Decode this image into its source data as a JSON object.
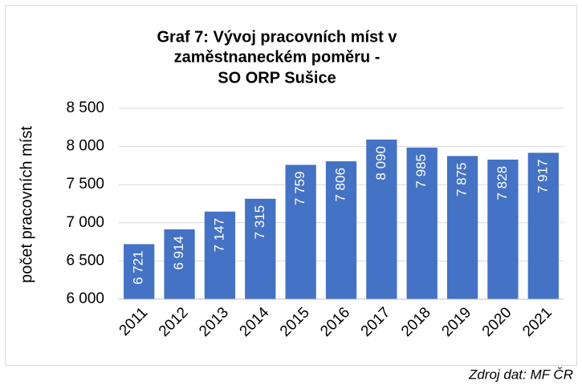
{
  "chart_data": {
    "type": "bar",
    "title": [
      "Graf 7: Vývoj pracovních míst v",
      "zaměstnaneckém poměru -",
      "SO ORP Sušice"
    ],
    "y_label": "počet pracovních míst",
    "source": "Zdroj dat: MF ČR",
    "categories": [
      "2011",
      "2012",
      "2013",
      "2014",
      "2015",
      "2016",
      "2017",
      "2018",
      "2019",
      "2020",
      "2021"
    ],
    "values": [
      6721,
      6914,
      7147,
      7315,
      7759,
      7806,
      8090,
      7985,
      7875,
      7828,
      7917
    ],
    "value_labels": [
      "6 721",
      "6 914",
      "7 147",
      "7 315",
      "7 759",
      "7 806",
      "8 090",
      "7 985",
      "7 875",
      "7 828",
      "7 917"
    ],
    "color": "#4472c4",
    "ylim": [
      6000,
      8500
    ],
    "yticks": [
      {
        "value": 6000,
        "label": "6 000"
      },
      {
        "value": 6500,
        "label": "6 500"
      },
      {
        "value": 7000,
        "label": "7 000"
      },
      {
        "value": 7500,
        "label": "7 500"
      },
      {
        "value": 8000,
        "label": "8 000"
      },
      {
        "value": 8500,
        "label": "8 500"
      }
    ],
    "grid": true
  }
}
